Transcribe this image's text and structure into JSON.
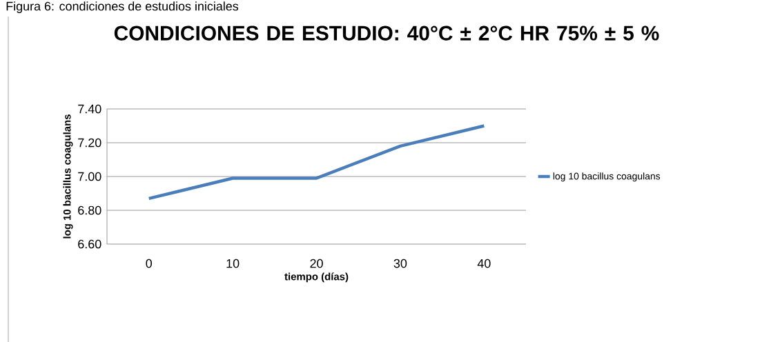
{
  "chart_data": {
    "type": "line",
    "title": "CONDICIONES DE ESTUDIO: 40°C ± 2°C HR 75% ± 5 %",
    "xlabel": "tiempo (días)",
    "ylabel": "log 10 bacillus coagulans",
    "annotations": [
      "Figura 6: condiciones de estudios iniciales"
    ],
    "categories": [
      "0",
      "10",
      "20",
      "30",
      "40"
    ],
    "series": [
      {
        "name": "log 10 bacillus coagulans",
        "color": "#4a7ebb",
        "values": [
          6.87,
          6.99,
          6.99,
          7.18,
          7.3
        ]
      }
    ],
    "ylim": [
      6.6,
      7.4
    ],
    "yticks": [
      {
        "value": 6.6,
        "label": "6.60"
      },
      {
        "value": 6.8,
        "label": "6.80"
      },
      {
        "value": 7.0,
        "label": "7.00"
      },
      {
        "value": 7.2,
        "label": "7.20"
      },
      {
        "value": 7.4,
        "label": "7.40"
      }
    ],
    "grid": "y",
    "legend": "right",
    "marker": "none",
    "line_style": "solid"
  }
}
